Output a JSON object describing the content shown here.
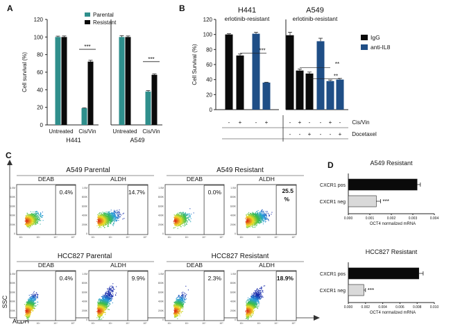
{
  "colors": {
    "teal": "#2f8f8c",
    "black": "#0a0a0a",
    "navy": "#1f4e86",
    "lightgray": "#d9d9d9"
  },
  "chart_data": [
    {
      "id": "A",
      "type": "bar",
      "panel_label": "A",
      "ylabel": "Cell survival (%)",
      "ylim": [
        0,
        120
      ],
      "yticks": [
        0,
        20,
        40,
        60,
        80,
        100,
        120
      ],
      "legend": [
        "Parental",
        "Resistant"
      ],
      "groups": [
        {
          "label": "H441",
          "categories": [
            "Untreated",
            "Cis/Vin"
          ],
          "series": [
            {
              "name": "Parental",
              "values": [
                100,
                19
              ]
            },
            {
              "name": "Resistant",
              "values": [
                100,
                72
              ]
            }
          ],
          "errors": [
            [
              1,
              0.5
            ],
            [
              1.2,
              1.5
            ]
          ],
          "signif": "***"
        },
        {
          "label": "A549",
          "categories": [
            "Untreated",
            "Cis/Vin"
          ],
          "series": [
            {
              "name": "Parental",
              "values": [
                100,
                38
              ]
            },
            {
              "name": "Resistant",
              "values": [
                100,
                57
              ]
            }
          ],
          "errors": [
            [
              1.5,
              1
            ],
            [
              1.2,
              1
            ]
          ],
          "signif": "***"
        }
      ]
    },
    {
      "id": "B",
      "type": "bar",
      "panel_label": "B",
      "ylabel": "Cell Survival (%)",
      "ylim": [
        0,
        120
      ],
      "yticks": [
        0,
        20,
        40,
        60,
        80,
        100,
        120
      ],
      "legend": [
        "IgG",
        "anti-IL8"
      ],
      "groups": [
        {
          "title": "H441",
          "subtitle": "erlotinib-resistant",
          "bars": [
            {
              "series": "IgG",
              "value": 100,
              "err": 1
            },
            {
              "series": "IgG",
              "value": 72,
              "err": 2
            },
            {
              "series": "anti-IL8",
              "value": 101,
              "err": 2
            },
            {
              "series": "anti-IL8",
              "value": 36,
              "err": 0.5
            }
          ],
          "cisvin": [
            "-",
            "+",
            "-",
            "+"
          ],
          "docetaxel": [
            "",
            "",
            "",
            ""
          ],
          "signif": [
            "***"
          ]
        },
        {
          "title": "A549",
          "subtitle": "erlotinib-resistant",
          "bars": [
            {
              "series": "IgG",
              "value": 99,
              "err": 4
            },
            {
              "series": "IgG",
              "value": 52,
              "err": 2
            },
            {
              "series": "IgG",
              "value": 48,
              "err": 2
            },
            {
              "series": "anti-IL8",
              "value": 91,
              "err": 4
            },
            {
              "series": "anti-IL8",
              "value": 38,
              "err": 1.5
            },
            {
              "series": "anti-IL8",
              "value": 40,
              "err": 1.5
            }
          ],
          "cisvin": [
            "-",
            "+",
            "-",
            "-",
            "+",
            "-"
          ],
          "docetaxel": [
            "-",
            "-",
            "+",
            "-",
            "-",
            "+"
          ],
          "signif": [
            "**",
            "**"
          ]
        }
      ],
      "row_labels": [
        "Cis/Vin",
        "Docetaxel"
      ]
    },
    {
      "id": "C",
      "type": "scatter",
      "panel_label": "C",
      "ylabel": "SSC",
      "xlabel": "ALDH",
      "ytick_labels": [
        "1.0M",
        "800K",
        "600K",
        "400K",
        "200K",
        "0"
      ],
      "xtick_labels": [
        "10²",
        "10³",
        "10⁴",
        "10⁵"
      ],
      "groups": [
        {
          "title": "A549 Parental",
          "plots": [
            {
              "label": "DEAB",
              "percent": "0.4%",
              "bold": false
            },
            {
              "label": "ALDH",
              "percent": "14.7%",
              "bold": false
            }
          ]
        },
        {
          "title": "A549 Resistant",
          "plots": [
            {
              "label": "DEAB",
              "percent": "0.0%",
              "bold": false
            },
            {
              "label": "ALDH",
              "percent": "25.5 %",
              "bold": true
            }
          ]
        },
        {
          "title": "HCC827 Parental",
          "plots": [
            {
              "label": "DEAB",
              "percent": "0.4%",
              "bold": false
            },
            {
              "label": "ALDH",
              "percent": "9.9%",
              "bold": false
            }
          ]
        },
        {
          "title": "HCC827 Resistant",
          "plots": [
            {
              "label": "DEAB",
              "percent": "2.3%",
              "bold": false
            },
            {
              "label": "ALDH",
              "percent": "18.9%",
              "bold": true
            }
          ]
        }
      ]
    },
    {
      "id": "D1",
      "type": "bar",
      "orientation": "horizontal",
      "panel_label": "D",
      "title": "A549 Resistant",
      "xlabel": "OCT4 normalized mRNA",
      "xlim": [
        0,
        0.004
      ],
      "xticks": [
        "0.000",
        "0.001",
        "0.002",
        "0.003",
        "0.004"
      ],
      "categories": [
        "CXCR1 pos",
        "CXCR1 neg"
      ],
      "values": [
        0.0032,
        0.0013
      ],
      "errors": [
        0.00015,
        0.0002
      ],
      "signif": "***"
    },
    {
      "id": "D2",
      "type": "bar",
      "orientation": "horizontal",
      "title": "HCC827 Resistant",
      "xlabel": "OCT4 normalized mRNA",
      "xlim": [
        0,
        0.01
      ],
      "xticks": [
        "0.000",
        "0.002",
        "0.004",
        "0.006",
        "0.008",
        "0.010"
      ],
      "categories": [
        "CXCR1 pos",
        "CXCR1 neg"
      ],
      "values": [
        0.0082,
        0.0018
      ],
      "errors": [
        0.0005,
        0.0002
      ],
      "signif": "***"
    }
  ]
}
